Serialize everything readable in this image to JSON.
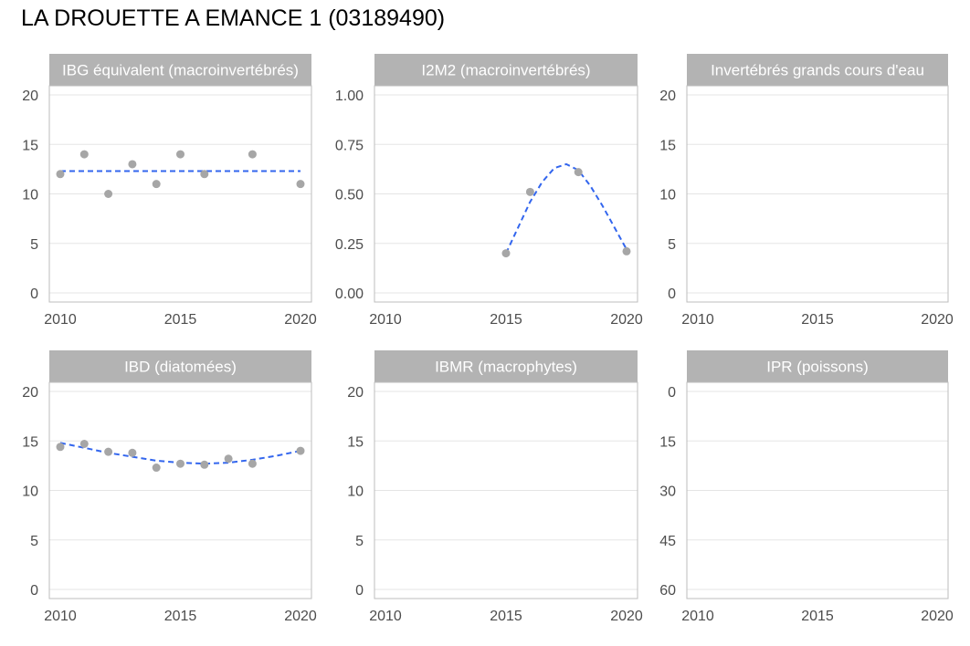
{
  "page_title": "LA DROUETTE A EMANCE 1 (03189490)",
  "colors": {
    "strip": "#b3b3b3",
    "strip_text": "#ffffff",
    "panel_border": "#bdbdbd",
    "grid": "#e5e5e5",
    "point": "#a6a6a6",
    "trend": "#3366ee",
    "tick_text": "#4d4d4d"
  },
  "chart_data": [
    {
      "type": "scatter",
      "title": "IBG équivalent (macroinvertébrés)",
      "x_ticks": [
        2010,
        2015,
        2020
      ],
      "xlim": [
        2010,
        2020
      ],
      "ylim": [
        0,
        20
      ],
      "y_ticks": [
        0,
        5,
        10,
        15,
        20
      ],
      "y_tick_labels": [
        "0",
        "5",
        "10",
        "15",
        "20"
      ],
      "y_reversed": false,
      "points": [
        {
          "x": 2010,
          "y": 12
        },
        {
          "x": 2011,
          "y": 14
        },
        {
          "x": 2012,
          "y": 10
        },
        {
          "x": 2013,
          "y": 13
        },
        {
          "x": 2014,
          "y": 11
        },
        {
          "x": 2015,
          "y": 14
        },
        {
          "x": 2016,
          "y": 12
        },
        {
          "x": 2018,
          "y": 14
        },
        {
          "x": 2020,
          "y": 11
        }
      ],
      "trend": [
        {
          "x": 2010,
          "y": 12.3
        },
        {
          "x": 2020,
          "y": 12.3
        }
      ]
    },
    {
      "type": "scatter",
      "title": "I2M2 (macroinvertébrés)",
      "x_ticks": [
        2010,
        2015,
        2020
      ],
      "xlim": [
        2010,
        2020
      ],
      "ylim": [
        0,
        1
      ],
      "y_ticks": [
        0,
        0.25,
        0.5,
        0.75,
        1
      ],
      "y_tick_labels": [
        "0.00",
        "0.25",
        "0.50",
        "0.75",
        "1.00"
      ],
      "y_reversed": false,
      "points": [
        {
          "x": 2015,
          "y": 0.2
        },
        {
          "x": 2016,
          "y": 0.51
        },
        {
          "x": 2018,
          "y": 0.61
        },
        {
          "x": 2020,
          "y": 0.21
        }
      ],
      "trend": [
        {
          "x": 2015,
          "y": 0.2
        },
        {
          "x": 2015.5,
          "y": 0.33
        },
        {
          "x": 2016,
          "y": 0.46
        },
        {
          "x": 2016.5,
          "y": 0.56
        },
        {
          "x": 2017,
          "y": 0.63
        },
        {
          "x": 2017.5,
          "y": 0.65
        },
        {
          "x": 2018,
          "y": 0.62
        },
        {
          "x": 2018.5,
          "y": 0.54
        },
        {
          "x": 2019,
          "y": 0.44
        },
        {
          "x": 2019.5,
          "y": 0.33
        },
        {
          "x": 2020,
          "y": 0.22
        }
      ]
    },
    {
      "type": "scatter",
      "title": "Invertébrés grands cours d'eau",
      "x_ticks": [
        2010,
        2015,
        2020
      ],
      "xlim": [
        2010,
        2020
      ],
      "ylim": [
        0,
        20
      ],
      "y_ticks": [
        0,
        5,
        10,
        15,
        20
      ],
      "y_tick_labels": [
        "0",
        "5",
        "10",
        "15",
        "20"
      ],
      "y_reversed": false,
      "points": [],
      "trend": []
    },
    {
      "type": "scatter",
      "title": "IBD (diatomées)",
      "x_ticks": [
        2010,
        2015,
        2020
      ],
      "xlim": [
        2010,
        2020
      ],
      "ylim": [
        0,
        20
      ],
      "y_ticks": [
        0,
        5,
        10,
        15,
        20
      ],
      "y_tick_labels": [
        "0",
        "5",
        "10",
        "15",
        "20"
      ],
      "y_reversed": false,
      "points": [
        {
          "x": 2010,
          "y": 14.4
        },
        {
          "x": 2011,
          "y": 14.7
        },
        {
          "x": 2012,
          "y": 13.9
        },
        {
          "x": 2013,
          "y": 13.8
        },
        {
          "x": 2014,
          "y": 12.3
        },
        {
          "x": 2015,
          "y": 12.7
        },
        {
          "x": 2016,
          "y": 12.6
        },
        {
          "x": 2017,
          "y": 13.2
        },
        {
          "x": 2018,
          "y": 12.7
        },
        {
          "x": 2020,
          "y": 14.0
        }
      ],
      "trend": [
        {
          "x": 2010,
          "y": 14.8
        },
        {
          "x": 2011,
          "y": 14.3
        },
        {
          "x": 2012,
          "y": 13.8
        },
        {
          "x": 2013,
          "y": 13.4
        },
        {
          "x": 2014,
          "y": 13.0
        },
        {
          "x": 2015,
          "y": 12.8
        },
        {
          "x": 2016,
          "y": 12.7
        },
        {
          "x": 2017,
          "y": 12.8
        },
        {
          "x": 2018,
          "y": 13.1
        },
        {
          "x": 2019,
          "y": 13.5
        },
        {
          "x": 2020,
          "y": 14.0
        }
      ]
    },
    {
      "type": "scatter",
      "title": "IBMR (macrophytes)",
      "x_ticks": [
        2010,
        2015,
        2020
      ],
      "xlim": [
        2010,
        2020
      ],
      "ylim": [
        0,
        20
      ],
      "y_ticks": [
        0,
        5,
        10,
        15,
        20
      ],
      "y_tick_labels": [
        "0",
        "5",
        "10",
        "15",
        "20"
      ],
      "y_reversed": false,
      "points": [],
      "trend": []
    },
    {
      "type": "scatter",
      "title": "IPR (poissons)",
      "x_ticks": [
        2010,
        2015,
        2020
      ],
      "xlim": [
        2010,
        2020
      ],
      "ylim": [
        0,
        60
      ],
      "y_ticks": [
        0,
        15,
        30,
        45,
        60
      ],
      "y_tick_labels": [
        "0",
        "15",
        "30",
        "45",
        "60"
      ],
      "y_reversed": true,
      "points": [],
      "trend": []
    }
  ]
}
